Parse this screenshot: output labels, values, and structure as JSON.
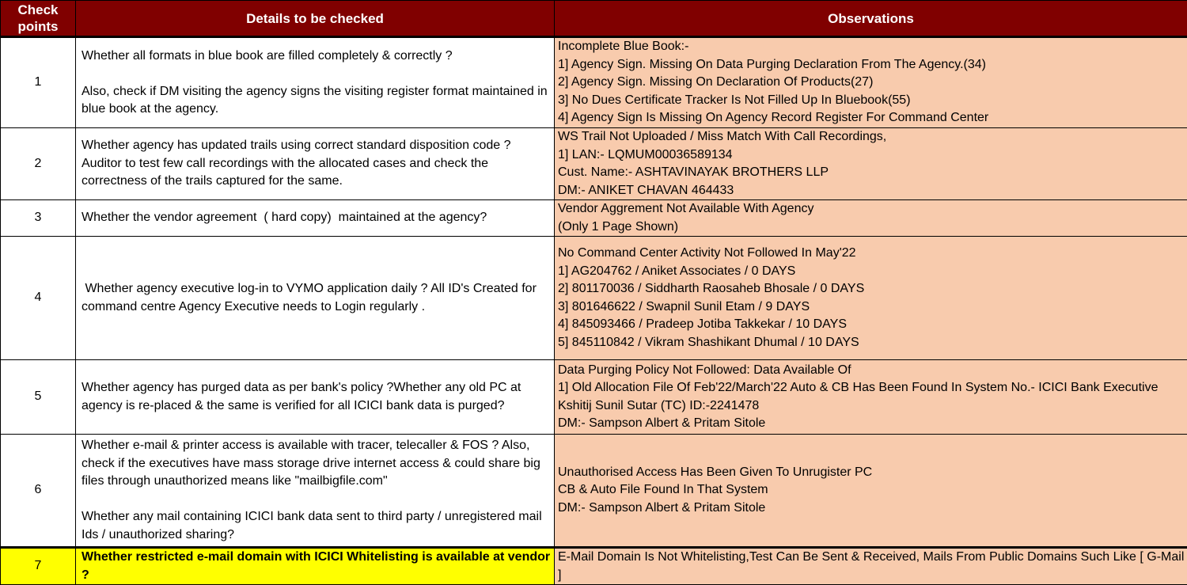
{
  "colors": {
    "header_bg": "#800000",
    "header_text": "#FFFFFF",
    "observations_bg": "#F8CBAD",
    "highlight_bg": "#FFFF00",
    "border": "#000000"
  },
  "table": {
    "headers": [
      {
        "label": "Check\npoints"
      },
      {
        "label": "Details to be checked"
      },
      {
        "label": "Observations"
      }
    ],
    "rows": [
      {
        "checkpoint": "1",
        "details": "Whether all formats in blue book are filled completely & correctly ?\n\nAlso, check if DM visiting the agency signs the visiting register format maintained in blue book at the agency.",
        "observations": "Incomplete Blue Book:-\n1] Agency Sign. Missing On Data Purging Declaration From The Agency.(34)\n2] Agency Sign. Missing On Declaration Of Products(27)\n3] No Dues Certificate Tracker Is Not Filled Up In Bluebook(55)\n4] Agency Sign Is Missing On Agency Record Register For Command Center",
        "highlight": false
      },
      {
        "checkpoint": "2",
        "details": "Whether agency has updated trails using correct standard disposition code ? Auditor to test few call recordings with the allocated cases and check the correctness of the trails captured for the same.",
        "observations": "WS Trail Not Uploaded / Miss Match With Call Recordings,\n1] LAN:- LQMUM00036589134\nCust. Name:- ASHTAVINAYAK BROTHERS LLP\nDM:- ANIKET CHAVAN 464433",
        "highlight": false
      },
      {
        "checkpoint": "3",
        "details": "Whether the vendor agreement  ( hard copy)  maintained at the agency?",
        "observations": "Vendor Aggrement Not Available With Agency\n(Only 1 Page Shown)",
        "highlight": false
      },
      {
        "checkpoint": "4",
        "details": " Whether agency executive log-in to VYMO application daily ? All ID's Created for command centre Agency Executive needs to Login regularly .",
        "observations": "No Command Center Activity Not Followed In May'22\n1] AG204762 / Aniket Associates / 0 DAYS\n2] 801170036 / Siddharth Raosaheb Bhosale / 0 DAYS\n3] 801646622 / Swapnil Sunil Etam / 9 DAYS\n4] 845093466 / Pradeep Jotiba Takkekar / 10 DAYS\n5] 845110842 / Vikram Shashikant Dhumal / 10 DAYS",
        "highlight": false
      },
      {
        "checkpoint": "5",
        "details": "Whether agency has purged data as per bank's policy ?Whether any old PC at agency is re-placed & the same is verified for all ICICI bank data is purged?",
        "observations": "Data Purging Policy Not Followed: Data Available Of\n1] Old Allocation File Of Feb'22/March'22 Auto & CB Has Been Found In System No.- ICICI Bank Executive Kshitij Sunil Sutar (TC) ID:-2241478\nDM:- Sampson Albert & Pritam Sitole",
        "highlight": false
      },
      {
        "checkpoint": "6",
        "details": "Whether e-mail & printer access is available with tracer, telecaller & FOS ? Also, check if the executives have mass storage drive internet access & could share big files through unauthorized means like \"mailbigfile.com\"\n\nWhether any mail containing ICICI bank data sent to third party / unregistered mail Ids / unauthorized sharing?",
        "observations": "Unauthorised Access Has Been Given To Unrugister PC\nCB & Auto File Found In That System\nDM:- Sampson Albert & Pritam Sitole",
        "highlight": false
      },
      {
        "checkpoint": "7",
        "details": "Whether restricted e-mail domain with ICICI Whitelisting is available at vendor ?",
        "observations": "E-Mail Domain Is Not Whitelisting,Test Can Be Sent & Received, Mails From Public Domains Such Like [ G-Mail ]",
        "highlight": true
      }
    ]
  }
}
